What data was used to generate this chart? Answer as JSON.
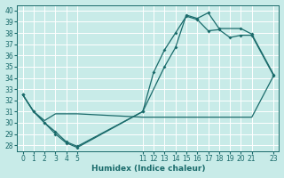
{
  "xlabel": "Humidex (Indice chaleur)",
  "background_color": "#c8ebe8",
  "grid_color": "#a8d5d0",
  "line_color": "#1a6b6b",
  "xlim": [
    -0.5,
    23.5
  ],
  "ylim": [
    27.5,
    40.5
  ],
  "xticks": [
    0,
    1,
    2,
    3,
    4,
    5,
    11,
    12,
    13,
    14,
    15,
    16,
    17,
    18,
    19,
    20,
    21,
    23
  ],
  "yticks": [
    28,
    29,
    30,
    31,
    32,
    33,
    34,
    35,
    36,
    37,
    38,
    39,
    40
  ],
  "line1_x": [
    0,
    1,
    2,
    3,
    4,
    5,
    11,
    12,
    13,
    14,
    15,
    16,
    17,
    18,
    19,
    20,
    21,
    23
  ],
  "line1_y": [
    32.5,
    31.0,
    30.0,
    29.0,
    28.2,
    27.8,
    31.0,
    34.5,
    36.5,
    38.0,
    39.5,
    39.2,
    38.2,
    38.3,
    37.6,
    37.8,
    37.8,
    34.2
  ],
  "line2_x": [
    0,
    1,
    2,
    3,
    4,
    5,
    11,
    12,
    13,
    14,
    15,
    16,
    17,
    18,
    19,
    20,
    21,
    23
  ],
  "line2_y": [
    32.5,
    31.0,
    30.2,
    30.8,
    30.8,
    30.8,
    30.5,
    30.5,
    30.5,
    30.5,
    30.5,
    30.5,
    30.5,
    30.5,
    30.5,
    30.5,
    30.5,
    34.2
  ],
  "line3_x": [
    0,
    1,
    2,
    3,
    4,
    5,
    11,
    13,
    14,
    15,
    16,
    17,
    18,
    20,
    21,
    23
  ],
  "line3_y": [
    32.5,
    31.0,
    30.0,
    29.2,
    28.3,
    27.9,
    31.0,
    35.0,
    36.7,
    39.6,
    39.3,
    39.8,
    38.4,
    38.4,
    37.9,
    34.3
  ]
}
